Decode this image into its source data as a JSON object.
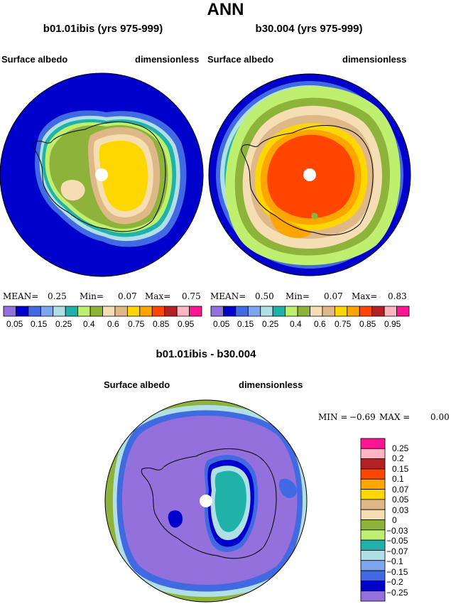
{
  "main_title": "ANN",
  "panels": [
    {
      "case": "b01.01ibis (yrs 975-999)",
      "variable": "Surface albedo",
      "units": "dimensionless",
      "stats": {
        "mean_label": "MEAN=",
        "mean": "0.25",
        "min_label": "Min=",
        "min": "0.07",
        "max_label": "Max=",
        "max": "0.75"
      }
    },
    {
      "case": "b30.004 (yrs 975-999)",
      "variable": "Surface albedo",
      "units": "dimensionless",
      "stats": {
        "mean_label": "MEAN=",
        "mean": "0.50",
        "min_label": "Min=",
        "min": "0.07",
        "max_label": "Max=",
        "max": "0.83"
      }
    }
  ],
  "colorbar_top": {
    "labels": [
      "0.05",
      "0.15",
      "0.25",
      "0.4",
      "0.6",
      "0.75",
      "0.85",
      "0.95"
    ],
    "colors": [
      "#9370db",
      "#0000cd",
      "#4169e1",
      "#7ea6f0",
      "#b0e0e6",
      "#20b2aa",
      "#bfef6f",
      "#8db33a",
      "#f5deb3",
      "#deb887",
      "#ffd700",
      "#ffa500",
      "#ff4500",
      "#b22222",
      "#ffb6c1",
      "#ff1493"
    ]
  },
  "diff_panel": {
    "title": "b01.01ibis - b30.004",
    "variable": "Surface albedo",
    "units": "dimensionless",
    "stats": {
      "min_label": "MIN =",
      "min": "−0.69",
      "max_label": "MAX =",
      "max": "0.00"
    }
  },
  "colorbar_diff": {
    "labels": [
      "0.25",
      "0.2",
      "0.15",
      "0.1",
      "0.07",
      "0.05",
      "0.03",
      "0",
      "−0.03",
      "−0.05",
      "−0.07",
      "−0.1",
      "−0.15",
      "−0.2",
      "−0.25"
    ],
    "colors": [
      "#ff1493",
      "#ffb6c1",
      "#b22222",
      "#ff4500",
      "#ffa500",
      "#ffd700",
      "#deb887",
      "#f5deb3",
      "#8db33a",
      "#bfef6f",
      "#20b2aa",
      "#b0e0e6",
      "#7ea6f0",
      "#4169e1",
      "#0000cd",
      "#9370db"
    ]
  }
}
